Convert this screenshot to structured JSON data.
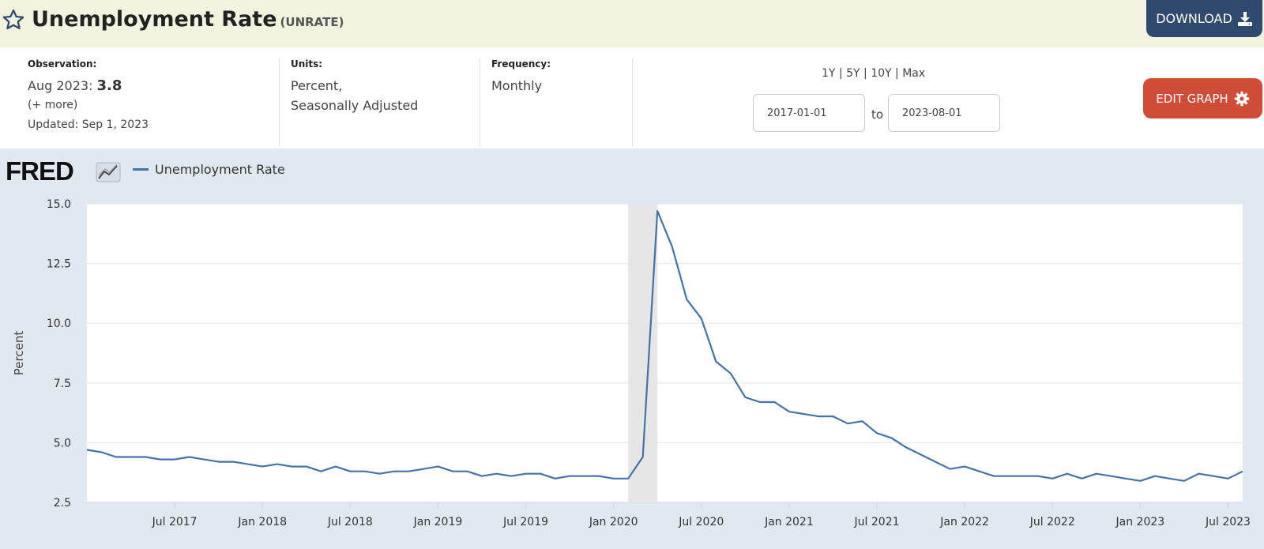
{
  "header": {
    "title": "Unemployment Rate",
    "series_id": "(UNRATE)",
    "download_label": "DOWNLOAD",
    "star_icon": "star-outline-icon",
    "download_icon": "download-icon"
  },
  "meta": {
    "observation": {
      "label": "Observation:",
      "date": "Aug 2023:",
      "value": "3.8",
      "more": "(+ more)",
      "updated": "Updated: Sep 1, 2023"
    },
    "units": {
      "label": "Units:",
      "line1": "Percent,",
      "line2": "Seasonally Adjusted"
    },
    "frequency": {
      "label": "Frequency:",
      "value": "Monthly"
    },
    "ranges": [
      "1Y",
      "5Y",
      "10Y",
      "Max"
    ],
    "range_separator": "|",
    "date_from": "2017-01-01",
    "to_label": "to",
    "date_to": "2023-08-01",
    "edit_label": "EDIT GRAPH",
    "edit_icon": "gear-icon"
  },
  "colors": {
    "header_bg": "#f2f4e0",
    "download_bg": "#2f4a6f",
    "edit_bg": "#cf4c37",
    "chart_bg": "#e1e9f0",
    "series": "#4572a7",
    "recession": "#e6e6e6"
  },
  "logo": {
    "text": "FRED"
  },
  "chart_data": {
    "type": "line",
    "legend_position": "top-left",
    "grid": true,
    "ylabel": "Percent",
    "ylim": [
      2.5,
      15.0
    ],
    "yticks": [
      "2.5",
      "5.0",
      "7.5",
      "10.0",
      "12.5",
      "15.0"
    ],
    "xlim": [
      "2017-01",
      "2023-08"
    ],
    "xticks": [
      {
        "label": "Jul 2017",
        "date": "2017-07"
      },
      {
        "label": "Jan 2018",
        "date": "2018-01"
      },
      {
        "label": "Jul 2018",
        "date": "2018-07"
      },
      {
        "label": "Jan 2019",
        "date": "2019-01"
      },
      {
        "label": "Jul 2019",
        "date": "2019-07"
      },
      {
        "label": "Jan 2020",
        "date": "2020-01"
      },
      {
        "label": "Jul 2020",
        "date": "2020-07"
      },
      {
        "label": "Jan 2021",
        "date": "2021-01"
      },
      {
        "label": "Jul 2021",
        "date": "2021-07"
      },
      {
        "label": "Jan 2022",
        "date": "2022-01"
      },
      {
        "label": "Jul 2022",
        "date": "2022-07"
      },
      {
        "label": "Jan 2023",
        "date": "2023-01"
      },
      {
        "label": "Jul 2023",
        "date": "2023-07"
      }
    ],
    "recession": {
      "start": "2020-02",
      "end": "2020-04"
    },
    "series": [
      {
        "name": "Unemployment Rate",
        "start": "2017-01",
        "frequency": "monthly",
        "values": [
          4.7,
          4.6,
          4.4,
          4.4,
          4.4,
          4.3,
          4.3,
          4.4,
          4.3,
          4.2,
          4.2,
          4.1,
          4.0,
          4.1,
          4.0,
          4.0,
          3.8,
          4.0,
          3.8,
          3.8,
          3.7,
          3.8,
          3.8,
          3.9,
          4.0,
          3.8,
          3.8,
          3.6,
          3.7,
          3.6,
          3.7,
          3.7,
          3.5,
          3.6,
          3.6,
          3.6,
          3.5,
          3.5,
          4.4,
          14.7,
          13.2,
          11.0,
          10.2,
          8.4,
          7.9,
          6.9,
          6.7,
          6.7,
          6.3,
          6.2,
          6.1,
          6.1,
          5.8,
          5.9,
          5.4,
          5.2,
          4.8,
          4.5,
          4.2,
          3.9,
          4.0,
          3.8,
          3.6,
          3.6,
          3.6,
          3.6,
          3.5,
          3.7,
          3.5,
          3.7,
          3.6,
          3.5,
          3.4,
          3.6,
          3.5,
          3.4,
          3.7,
          3.6,
          3.5,
          3.8
        ]
      }
    ]
  }
}
